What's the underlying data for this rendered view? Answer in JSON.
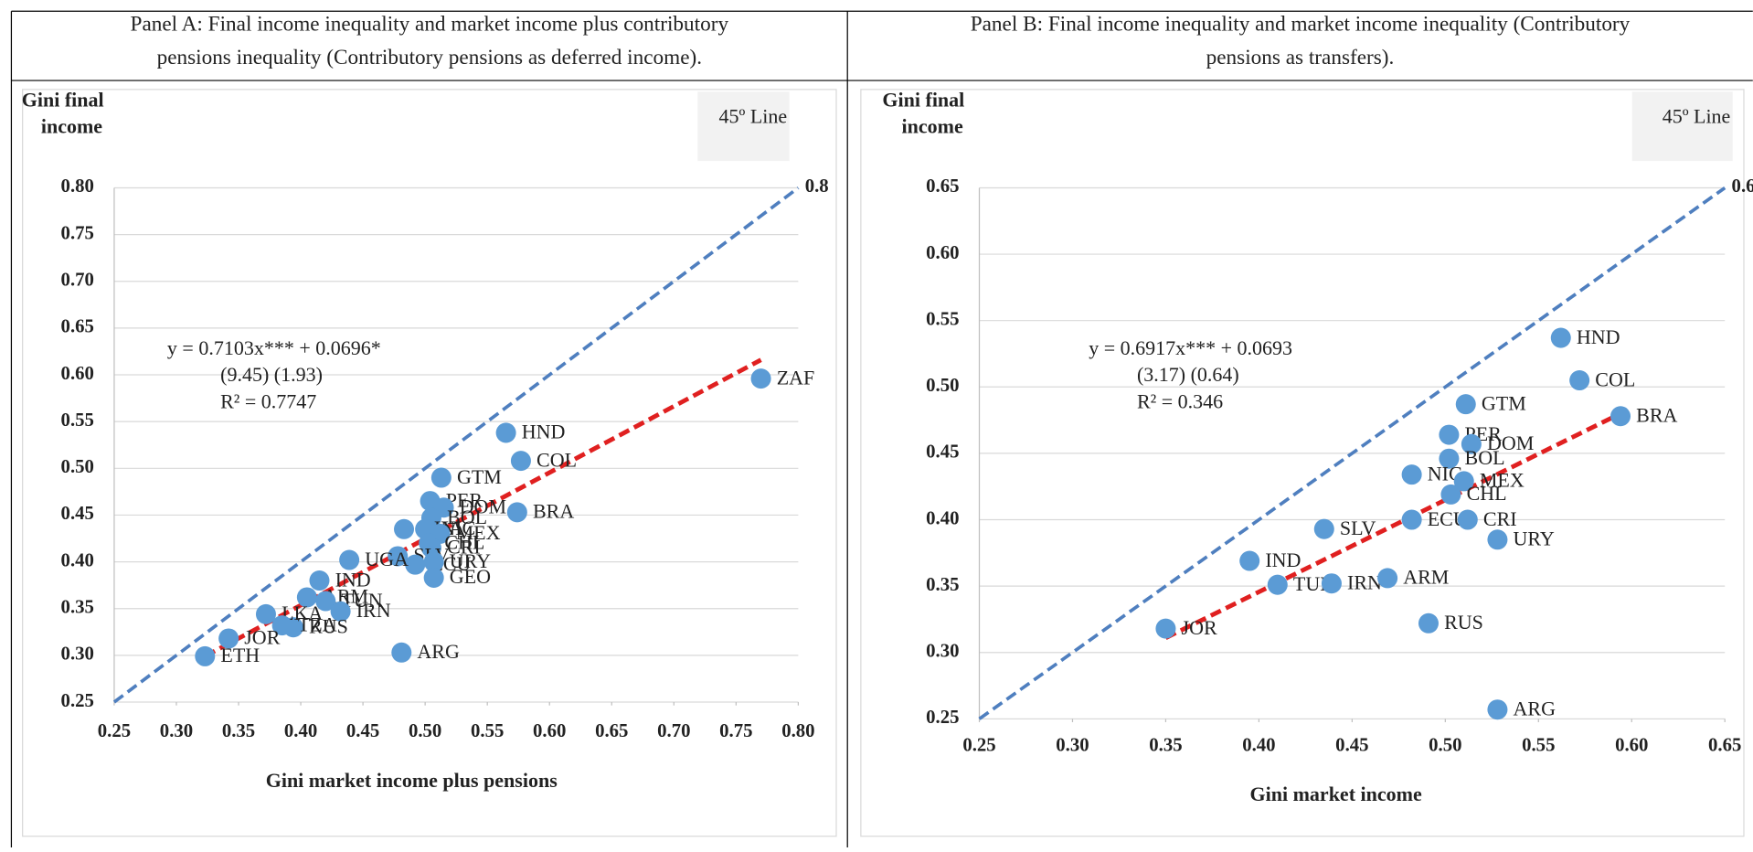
{
  "chart_data": [
    {
      "type": "scatter",
      "title_lines": [
        "Panel A: Final income inequality and market income plus contributory",
        "pensions inequality (Contributory pensions as deferred income)."
      ],
      "y_label_lines": [
        "Gini final",
        "income"
      ],
      "x_label": "Gini market income plus pensions",
      "equation_lines": [
        "y = 0.7103x*** + 0.0696*",
        "(9.45)      (1.93)",
        "R² = 0.7747"
      ],
      "color": "#5b9bd5",
      "point_labels": [
        "ZAF",
        "HND",
        "COL",
        "GTM",
        "BRA",
        "PER",
        "DOM",
        "BOL",
        "GHA",
        "NIC",
        "MEX",
        "CHL",
        "CRI",
        "SLV",
        "ECU",
        "URY",
        "GEO",
        "UGA",
        "IND",
        "ARM",
        "TUN",
        "IRN",
        "RUS",
        "LKA",
        "TZA",
        "JOR",
        "ETH",
        "ARG"
      ],
      "x": [
        0.77,
        0.565,
        0.577,
        0.513,
        0.574,
        0.504,
        0.515,
        0.505,
        0.483,
        0.5,
        0.512,
        0.503,
        0.505,
        0.478,
        0.492,
        0.507,
        0.507,
        0.439,
        0.415,
        0.405,
        0.42,
        0.432,
        0.394,
        0.372,
        0.385,
        0.342,
        0.323,
        0.481
      ],
      "values": [
        0.596,
        0.538,
        0.508,
        0.49,
        0.453,
        0.465,
        0.458,
        0.447,
        0.435,
        0.435,
        0.43,
        0.42,
        0.415,
        0.406,
        0.397,
        0.4,
        0.383,
        0.402,
        0.38,
        0.362,
        0.358,
        0.347,
        0.33,
        0.344,
        0.332,
        0.318,
        0.299,
        0.303
      ],
      "trendline": {
        "color": "#e02020",
        "x": [
          0.323,
          0.77
        ],
        "y": [
          0.299,
          0.616
        ]
      },
      "reference_line": {
        "label": "45º Line",
        "end_label": "0.8",
        "color": "#4f7fbf",
        "x": [
          0.25,
          0.8
        ],
        "y": [
          0.25,
          0.8
        ]
      },
      "xlim": [
        0.25,
        0.8
      ],
      "xticks": [
        {
          "value": 0.25,
          "label": "0.25"
        },
        {
          "value": 0.3,
          "label": "0.30"
        },
        {
          "value": 0.35,
          "label": "0.35"
        },
        {
          "value": 0.4,
          "label": "0.40"
        },
        {
          "value": 0.45,
          "label": "0.45"
        },
        {
          "value": 0.5,
          "label": "0.50"
        },
        {
          "value": 0.55,
          "label": "0.55"
        },
        {
          "value": 0.6,
          "label": "0.60"
        },
        {
          "value": 0.65,
          "label": "0.65"
        },
        {
          "value": 0.7,
          "label": "0.70"
        },
        {
          "value": 0.75,
          "label": "0.75"
        },
        {
          "value": 0.8,
          "label": "0.80"
        }
      ],
      "ylim": [
        0.25,
        0.8
      ],
      "yticks": [
        {
          "value": 0.25,
          "label": "0.25"
        },
        {
          "value": 0.3,
          "label": "0.30"
        },
        {
          "value": 0.35,
          "label": "0.35"
        },
        {
          "value": 0.4,
          "label": "0.40"
        },
        {
          "value": 0.45,
          "label": "0.45"
        },
        {
          "value": 0.5,
          "label": "0.50"
        },
        {
          "value": 0.55,
          "label": "0.55"
        },
        {
          "value": 0.6,
          "label": "0.60"
        },
        {
          "value": 0.65,
          "label": "0.65"
        },
        {
          "value": 0.7,
          "label": "0.70"
        },
        {
          "value": 0.75,
          "label": "0.75"
        },
        {
          "value": 0.8,
          "label": "0.80"
        }
      ],
      "grid": true
    },
    {
      "type": "scatter",
      "title_lines": [
        "Panel B: Final income inequality and market income inequality (Contributory",
        "pensions as transfers)."
      ],
      "y_label_lines": [
        "Gini final",
        "income"
      ],
      "x_label": "Gini market income",
      "equation_lines": [
        "y = 0.6917x*** + 0.0693",
        "(3.17)        (0.64)",
        "R² = 0.346"
      ],
      "color": "#5b9bd5",
      "point_labels": [
        "HND",
        "COL",
        "BRA",
        "GTM",
        "PER",
        "DOM",
        "BOL",
        "NIC",
        "MEX",
        "CHL",
        "ECU",
        "CRI",
        "URY",
        "SLV",
        "IND",
        "TUN",
        "IRN",
        "ARM",
        "RUS",
        "JOR",
        "ARG"
      ],
      "x": [
        0.562,
        0.572,
        0.594,
        0.511,
        0.502,
        0.514,
        0.502,
        0.482,
        0.51,
        0.503,
        0.482,
        0.512,
        0.528,
        0.435,
        0.395,
        0.41,
        0.439,
        0.469,
        0.491,
        0.35,
        0.528
      ],
      "values": [
        0.537,
        0.505,
        0.478,
        0.487,
        0.464,
        0.457,
        0.446,
        0.434,
        0.429,
        0.419,
        0.4,
        0.4,
        0.385,
        0.393,
        0.369,
        0.351,
        0.352,
        0.356,
        0.322,
        0.318,
        0.257
      ],
      "trendline": {
        "color": "#e02020",
        "x": [
          0.35,
          0.594
        ],
        "y": [
          0.311,
          0.48
        ]
      },
      "reference_line": {
        "label": "45º Line",
        "end_label": "0.65",
        "color": "#4f7fbf",
        "x": [
          0.25,
          0.65
        ],
        "y": [
          0.25,
          0.65
        ]
      },
      "xlim": [
        0.25,
        0.65
      ],
      "xticks": [
        {
          "value": 0.25,
          "label": "0.25"
        },
        {
          "value": 0.3,
          "label": "0.30"
        },
        {
          "value": 0.35,
          "label": "0.35"
        },
        {
          "value": 0.4,
          "label": "0.40"
        },
        {
          "value": 0.45,
          "label": "0.45"
        },
        {
          "value": 0.5,
          "label": "0.50"
        },
        {
          "value": 0.55,
          "label": "0.55"
        },
        {
          "value": 0.6,
          "label": "0.60"
        },
        {
          "value": 0.65,
          "label": "0.65"
        }
      ],
      "ylim": [
        0.25,
        0.65
      ],
      "yticks": [
        {
          "value": 0.25,
          "label": "0.25"
        },
        {
          "value": 0.3,
          "label": "0.30"
        },
        {
          "value": 0.35,
          "label": "0.35"
        },
        {
          "value": 0.4,
          "label": "0.40"
        },
        {
          "value": 0.45,
          "label": "0.45"
        },
        {
          "value": 0.5,
          "label": "0.50"
        },
        {
          "value": 0.55,
          "label": "0.55"
        },
        {
          "value": 0.6,
          "label": "0.60"
        },
        {
          "value": 0.65,
          "label": "0.65"
        }
      ],
      "grid": true
    }
  ]
}
